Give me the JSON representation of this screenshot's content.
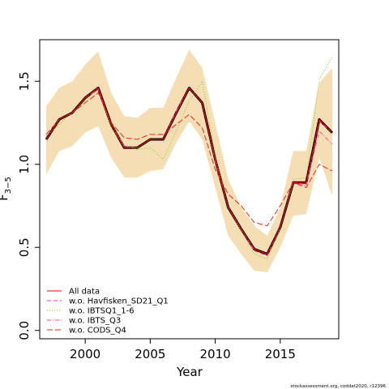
{
  "chart_data": {
    "type": "line",
    "xlabel": "Year",
    "ylabel_main": "F",
    "ylabel_sub": "3−5",
    "xlim": [
      1996.5,
      2019.5
    ],
    "ylim": [
      -0.05,
      1.75
    ],
    "x_ticks": [
      2000,
      2005,
      2010,
      2015
    ],
    "y_ticks": [
      0.0,
      0.5,
      1.0,
      1.5
    ],
    "y_tick_labels": [
      "0.0",
      "0.5",
      "1.0",
      "1.5"
    ],
    "x": [
      1997,
      1998,
      1999,
      2000,
      2001,
      2002,
      2003,
      2004,
      2005,
      2006,
      2007,
      2008,
      2009,
      2010,
      2011,
      2012,
      2013,
      2014,
      2015,
      2016,
      2017,
      2018,
      2019
    ],
    "band": {
      "color": "#F5DEB3",
      "upper": [
        1.35,
        1.46,
        1.5,
        1.6,
        1.68,
        1.43,
        1.29,
        1.28,
        1.34,
        1.34,
        1.52,
        1.69,
        1.58,
        1.25,
        0.91,
        0.74,
        0.63,
        0.57,
        0.74,
        1.08,
        1.08,
        1.49,
        1.58
      ],
      "lower": [
        0.94,
        1.08,
        1.11,
        1.19,
        1.23,
        1.04,
        0.92,
        0.92,
        0.96,
        0.97,
        1.13,
        1.26,
        1.15,
        0.86,
        0.57,
        0.46,
        0.36,
        0.35,
        0.5,
        0.69,
        0.7,
        1.04,
        0.81
      ]
    },
    "main_line": [
      1.15,
      1.27,
      1.31,
      1.4,
      1.46,
      1.24,
      1.1,
      1.1,
      1.15,
      1.15,
      1.31,
      1.46,
      1.37,
      1.03,
      0.74,
      0.61,
      0.49,
      0.46,
      0.62,
      0.89,
      0.89,
      1.27,
      1.19
    ],
    "series": [
      {
        "name": "All data",
        "color": "#FF0000",
        "dash": "none",
        "values": [
          1.15,
          1.27,
          1.31,
          1.4,
          1.46,
          1.24,
          1.1,
          1.1,
          1.15,
          1.15,
          1.31,
          1.46,
          1.37,
          1.03,
          0.74,
          0.61,
          0.49,
          0.46,
          0.62,
          0.89,
          0.89,
          1.27,
          1.19
        ]
      },
      {
        "name": "w.o. Havfisken_SD21_Q1",
        "color": "#DF36B8",
        "dash": "5,3",
        "values": [
          1.15,
          1.27,
          1.31,
          1.4,
          1.45,
          1.24,
          1.1,
          1.1,
          1.15,
          1.15,
          1.31,
          1.46,
          1.37,
          1.03,
          0.74,
          0.61,
          0.48,
          0.45,
          0.62,
          0.89,
          0.88,
          1.26,
          1.19
        ]
      },
      {
        "name": "w.o. IBTSQ1_1-6",
        "color": "#7CD21B",
        "dash": "1,2",
        "values": [
          1.17,
          1.24,
          1.31,
          1.38,
          1.46,
          1.22,
          1.11,
          1.09,
          1.1,
          1.03,
          1.2,
          1.38,
          1.5,
          1.05,
          0.74,
          0.6,
          0.46,
          0.43,
          0.61,
          0.91,
          0.92,
          1.51,
          1.65
        ]
      },
      {
        "name": "w.o. IBTS_Q3",
        "color": "#FF4D88",
        "dash": "5,2,1,2",
        "values": [
          1.15,
          1.27,
          1.31,
          1.4,
          1.46,
          1.24,
          1.11,
          1.1,
          1.15,
          1.15,
          1.32,
          1.46,
          1.37,
          1.02,
          0.74,
          0.61,
          0.49,
          0.46,
          0.62,
          0.89,
          0.87,
          1.2,
          1.12
        ]
      },
      {
        "name": "w.o. CODS_Q4",
        "color": "#E8271D",
        "dash": "7,3",
        "values": [
          1.18,
          1.27,
          1.31,
          1.37,
          1.43,
          1.25,
          1.16,
          1.15,
          1.18,
          1.18,
          1.24,
          1.3,
          1.22,
          0.97,
          0.82,
          0.75,
          0.65,
          0.63,
          0.75,
          0.89,
          0.86,
          1.0,
          0.96
        ]
      }
    ],
    "legend_position": "bottom-left",
    "grid": false
  },
  "credit": "stockassessment.org, coddat2020, r12396"
}
